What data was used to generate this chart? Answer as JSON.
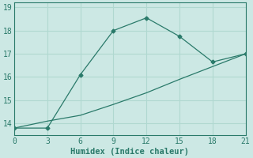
{
  "xlabel": "Humidex (Indice chaleur)",
  "bg_color": "#cce8e4",
  "grid_color": "#b0d8d0",
  "line_color": "#2a7a6a",
  "xlim": [
    0,
    21
  ],
  "ylim": [
    13.5,
    19.2
  ],
  "xticks": [
    0,
    3,
    6,
    9,
    12,
    15,
    18,
    21
  ],
  "yticks": [
    14,
    15,
    16,
    17,
    18,
    19
  ],
  "line1_x": [
    0,
    3,
    6,
    9,
    12,
    15,
    18,
    21
  ],
  "line1_y": [
    13.8,
    13.8,
    16.1,
    18.0,
    18.55,
    17.75,
    16.65,
    17.0
  ],
  "line2_x": [
    0,
    3,
    6,
    9,
    12,
    15,
    18,
    21
  ],
  "line2_y": [
    13.8,
    14.1,
    14.35,
    14.82,
    15.32,
    15.9,
    16.45,
    17.0
  ]
}
